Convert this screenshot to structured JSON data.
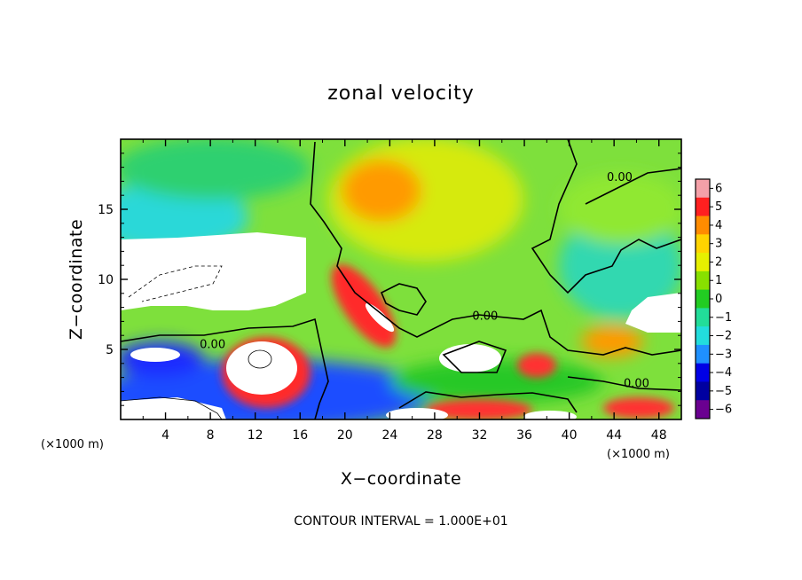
{
  "chart_data": {
    "type": "heatmap",
    "title": "zonal velocity",
    "xlabel": "X−coordinate",
    "ylabel": "Z−coordinate",
    "x_unit_left": "(×1000 m)",
    "x_unit_right": "(×1000 m)",
    "xlim": [
      0,
      50
    ],
    "ylim": [
      0,
      20
    ],
    "xticks": [
      4,
      8,
      12,
      16,
      20,
      24,
      28,
      32,
      36,
      40,
      44,
      48
    ],
    "yticks": [
      5,
      10,
      15
    ],
    "colorbar": {
      "levels": [
        6,
        5,
        4,
        3,
        2,
        1,
        0,
        -1,
        -2,
        -3,
        -4,
        -5,
        -6
      ],
      "labels": [
        "6",
        "5",
        "4",
        "3",
        "2",
        "1",
        "0",
        "−1",
        "−2",
        "−3",
        "−4",
        "−5",
        "−6"
      ],
      "colors": [
        "#f4a0a8",
        "#ff2020",
        "#ff8c00",
        "#ffd400",
        "#e6f000",
        "#88e000",
        "#22cc22",
        "#22dd99",
        "#22dddd",
        "#1f90ff",
        "#0000e6",
        "#0000a0",
        "#6a0090"
      ]
    },
    "contour_labels": [
      {
        "text": "0.00",
        "x": 44.5,
        "y": 17.2
      },
      {
        "text": "0.00",
        "x": 32.5,
        "y": 7.3
      },
      {
        "text": "0.00",
        "x": 8.2,
        "y": 5.3
      },
      {
        "text": "0.00",
        "x": 46.0,
        "y": 2.5
      }
    ],
    "contour_interval_text": "CONTOUR INTERVAL = 1.000E+01"
  }
}
